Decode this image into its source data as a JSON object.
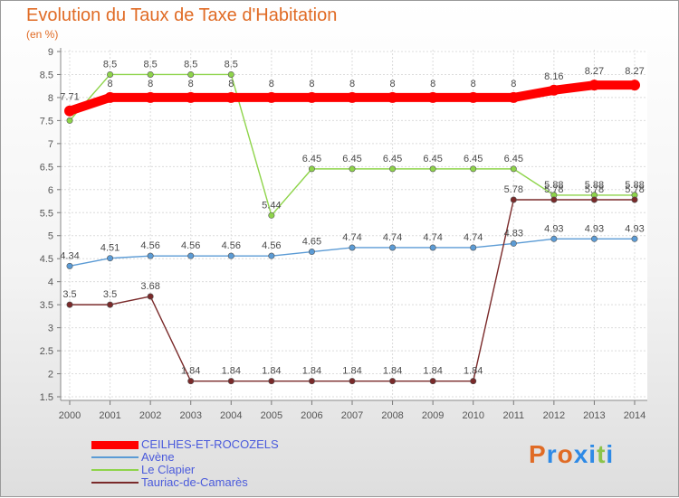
{
  "header": {
    "title": "Evolution du Taux de Taxe d'Habitation",
    "subtitle": "(en %)"
  },
  "logo": {
    "text": "Proxiti",
    "colors": [
      "#e06b25",
      "#2e8ae6",
      "#e06b25",
      "#2e8ae6",
      "#2e8ae6",
      "#8bc34a"
    ]
  },
  "chart_data": {
    "type": "line",
    "title": "Evolution du Taux de Taxe d'Habitation",
    "subtitle": "(en %)",
    "x": [
      "2000",
      "2001",
      "2002",
      "2003",
      "2004",
      "2005",
      "2006",
      "2007",
      "2008",
      "2009",
      "2010",
      "2011",
      "2012",
      "2013",
      "2014"
    ],
    "ylim": [
      1.5,
      9
    ],
    "yticks": [
      "1.5",
      "2",
      "2.5",
      "3",
      "3.5",
      "4",
      "4.5",
      "5",
      "5.5",
      "6",
      "6.5",
      "7",
      "7.5",
      "8",
      "8.5",
      "9"
    ],
    "grid": true,
    "legend_position": "bottom-left",
    "series": [
      {
        "name": "CEILHES-ET-ROCOZELS",
        "color": "#ff0000",
        "values": [
          7.71,
          8,
          8,
          8,
          8,
          8,
          8,
          8,
          8,
          8,
          8,
          8,
          8.16,
          8.27,
          8.27
        ],
        "labels": [
          "7.71",
          "8",
          "8",
          "8",
          "8",
          "8",
          "8",
          "8",
          "8",
          "8",
          "8",
          "8",
          "8.16",
          "8.27",
          "8.27"
        ]
      },
      {
        "name": "Avène",
        "color": "#5b9bd5",
        "values": [
          4.34,
          4.51,
          4.56,
          4.56,
          4.56,
          4.56,
          4.65,
          4.74,
          4.74,
          4.74,
          4.74,
          4.83,
          4.93,
          4.93,
          4.93
        ],
        "labels": [
          "4.34",
          "4.51",
          "4.56",
          "4.56",
          "4.56",
          "4.56",
          "4.65",
          "4.74",
          "4.74",
          "4.74",
          "4.74",
          "4.83",
          "4.93",
          "4.93",
          "4.93"
        ]
      },
      {
        "name": "Le Clapier",
        "color": "#8ed44a",
        "values": [
          7.5,
          8.5,
          8.5,
          8.5,
          8.5,
          5.44,
          6.45,
          6.45,
          6.45,
          6.45,
          6.45,
          6.45,
          5.88,
          5.88,
          5.88
        ],
        "labels": [
          "",
          "8.5",
          "8.5",
          "8.5",
          "8.5",
          "5.44",
          "6.45",
          "6.45",
          "6.45",
          "6.45",
          "6.45",
          "6.45",
          "5.88",
          "5.88",
          "5.88"
        ]
      },
      {
        "name": "Tauriac-de-Camarès",
        "color": "#7a2a2a",
        "values": [
          3.5,
          3.5,
          3.68,
          1.84,
          1.84,
          1.84,
          1.84,
          1.84,
          1.84,
          1.84,
          1.84,
          5.78,
          5.78,
          5.78,
          5.78
        ],
        "labels": [
          "3.5",
          "3.5",
          "3.68",
          "1.84",
          "1.84",
          "1.84",
          "1.84",
          "1.84",
          "1.84",
          "1.84",
          "1.84",
          "5.78",
          "5.78",
          "5.78",
          "5.78"
        ]
      }
    ]
  }
}
